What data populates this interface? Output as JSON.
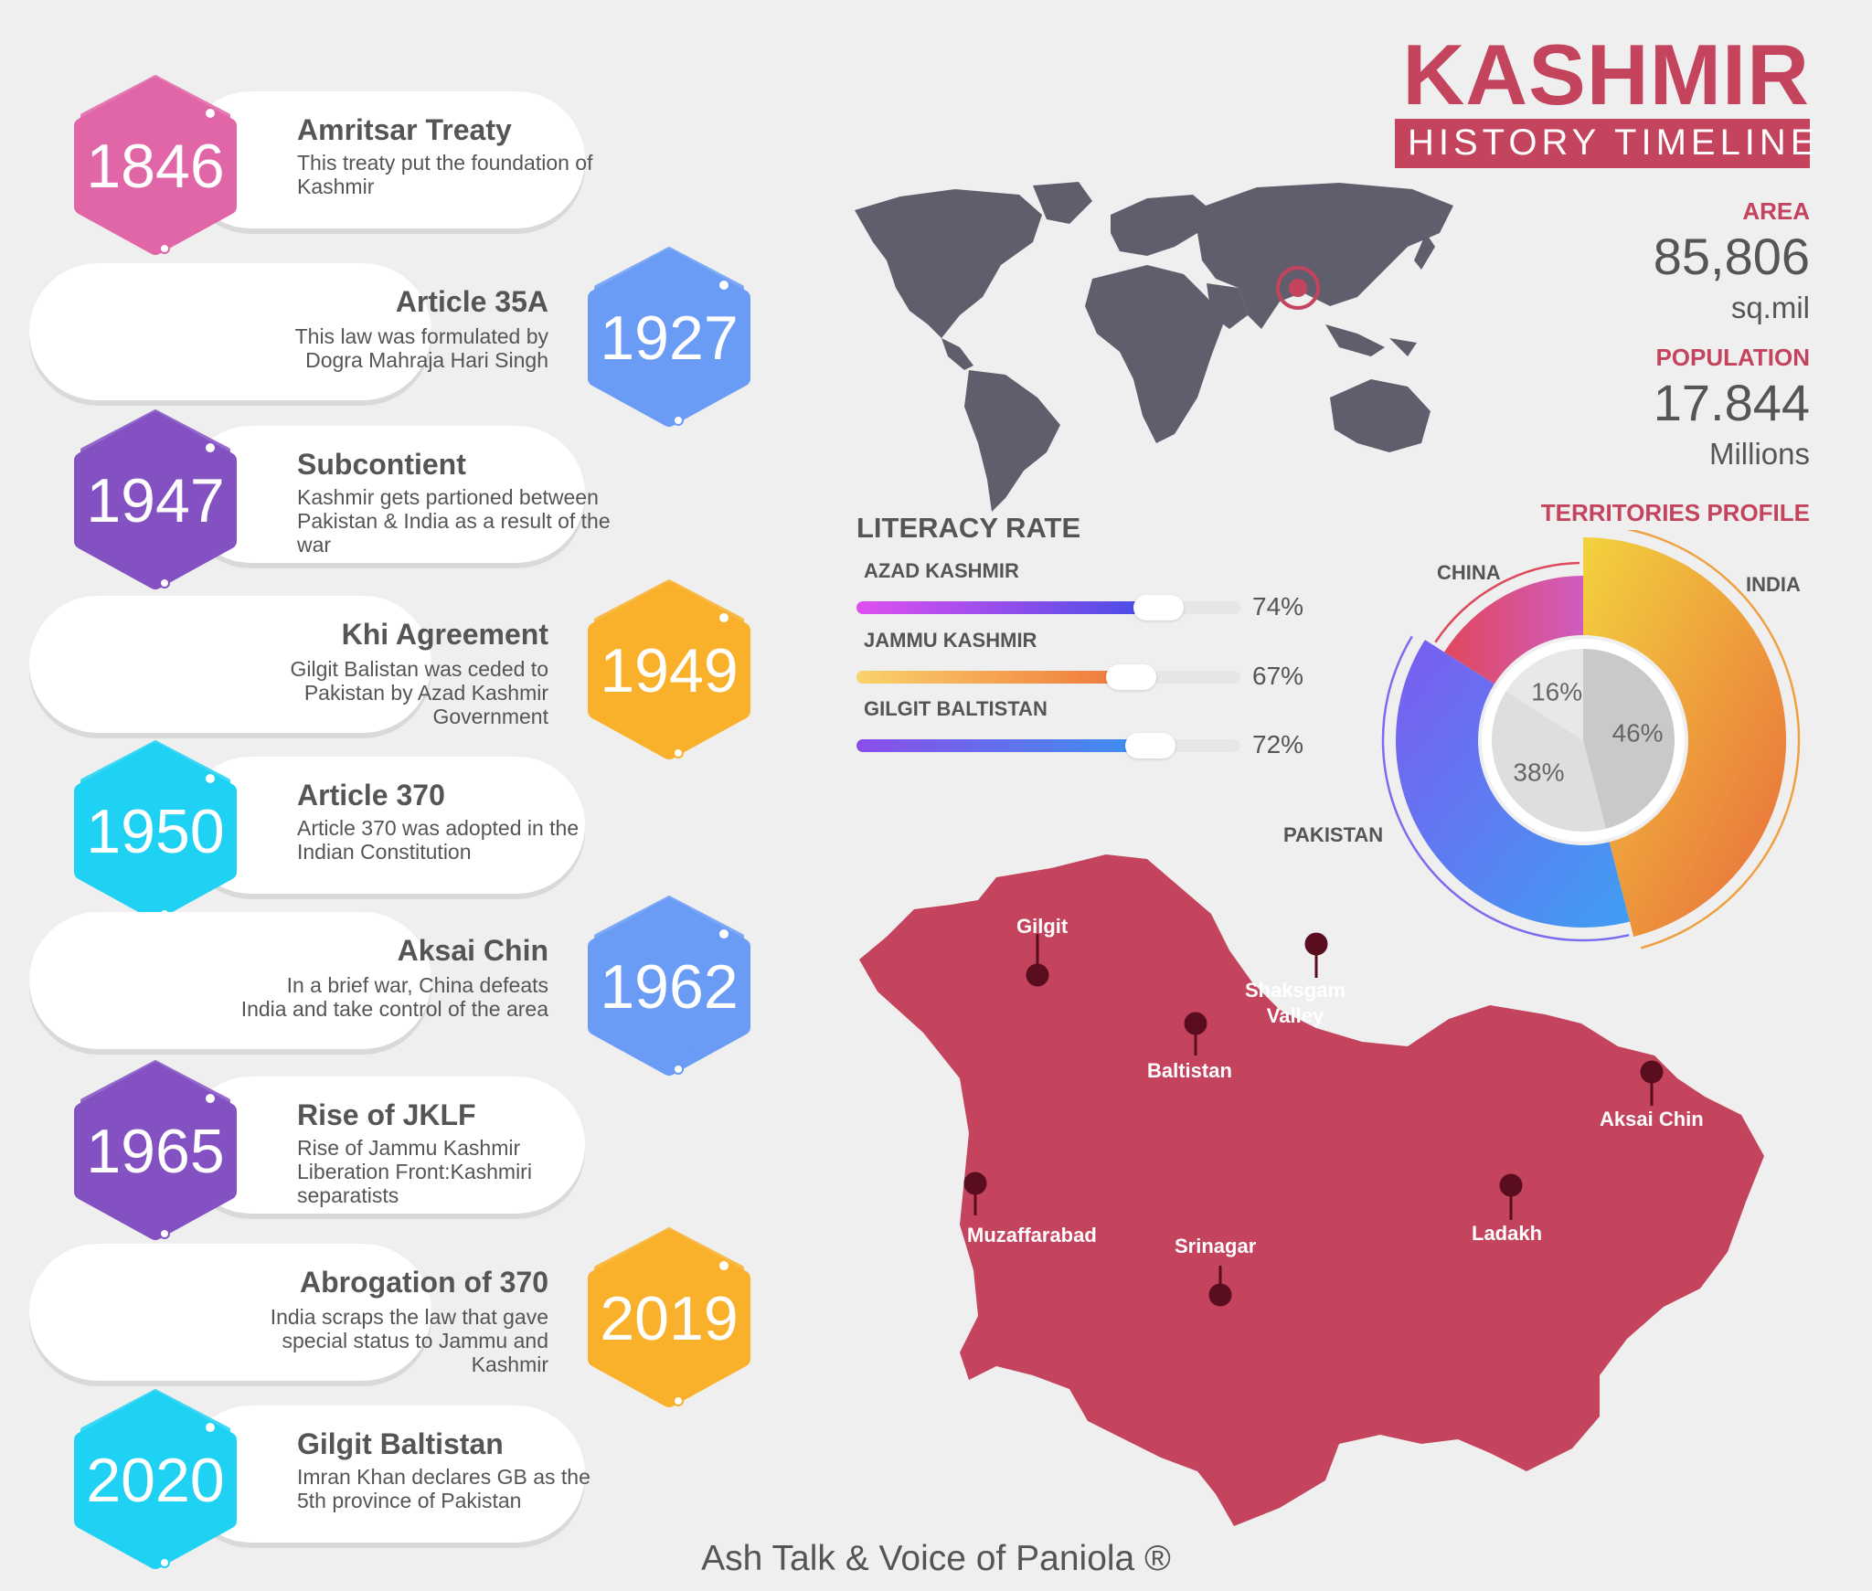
{
  "header": {
    "title": "KASHMIR",
    "subtitle": "HISTORY TIMELINE"
  },
  "stats": {
    "area": {
      "label": "AREA",
      "value": "85,806",
      "unit": "sq.mil"
    },
    "population": {
      "label": "POPULATION",
      "value": "17.844",
      "unit": "Millions"
    }
  },
  "timeline": [
    {
      "year": "1846",
      "title": "Amritsar Treaty",
      "desc": "This treaty put the foundation of Kashmir",
      "color": "#e066a8",
      "side": "left"
    },
    {
      "year": "1927",
      "title": "Article 35A",
      "desc": "This law was formulated by Dogra Mahraja Hari Singh",
      "color": "#6a9cf6",
      "side": "right"
    },
    {
      "year": "1947",
      "title": "Subcontient",
      "desc": "Kashmir gets partioned between Pakistan & India as a result of the war",
      "color": "#8451c2",
      "side": "left"
    },
    {
      "year": "1949",
      "title": "Khi Agreement",
      "desc": "Gilgit Balistan was ceded to Pakistan by Azad Kashmir Government",
      "color": "#f9b12c",
      "side": "right"
    },
    {
      "year": "1950",
      "title": "Article 370",
      "desc": "Article 370 was adopted in the Indian Constitution",
      "color": "#1fd2f3",
      "side": "left"
    },
    {
      "year": "1962",
      "title": "Aksai Chin",
      "desc": "In a brief war, China defeats India and take control of the area",
      "color": "#6a9cf6",
      "side": "right"
    },
    {
      "year": "1965",
      "title": "Rise of JKLF",
      "desc": "Rise of Jammu Kashmir Liberation Front:Kashmiri separatists",
      "color": "#8451c2",
      "side": "left"
    },
    {
      "year": "2019",
      "title": "Abrogation of 370",
      "desc": "India scraps the law that gave special status to Jammu and Kashmir",
      "color": "#f9b12c",
      "side": "right"
    },
    {
      "year": "2020",
      "title": "Gilgit Baltistan",
      "desc": "Imran Khan declares GB as the 5th province of Pakistan",
      "color": "#1fd2f3",
      "side": "left"
    }
  ],
  "literacy": {
    "heading": "LITERACY RATE",
    "rows": [
      {
        "label": "AZAD KASHMIR",
        "value": "74%",
        "fraction": 0.74,
        "from": "#e04ff0",
        "to": "#4b4de8"
      },
      {
        "label": "JAMMU KASHMIR",
        "value": "67%",
        "fraction": 0.67,
        "from": "#f9d36b",
        "to": "#f07b3c"
      },
      {
        "label": "GILGIT BALTISTAN",
        "value": "72%",
        "fraction": 0.72,
        "from": "#8b4de8",
        "to": "#3d8ff0"
      }
    ]
  },
  "territories": {
    "heading": "TERRITORIES PROFILE",
    "segments": [
      {
        "name": "INDIA",
        "percent": "46%",
        "value": 46
      },
      {
        "name": "PAKISTAN",
        "percent": "38%",
        "value": 38
      },
      {
        "name": "CHINA",
        "percent": "16%",
        "value": 16
      }
    ]
  },
  "map_labels": [
    "Gilgit",
    "Shaksgam Valley",
    "Baltistan",
    "Aksai Chin",
    "Muzaffarabad",
    "Srinagar",
    "Ladakh"
  ],
  "footer": "Ash Talk & Voice of Paniola ®",
  "colors": {
    "accent": "#c4435d",
    "map": "#c4435d",
    "world_map": "#605e6c",
    "text": "#555555"
  }
}
